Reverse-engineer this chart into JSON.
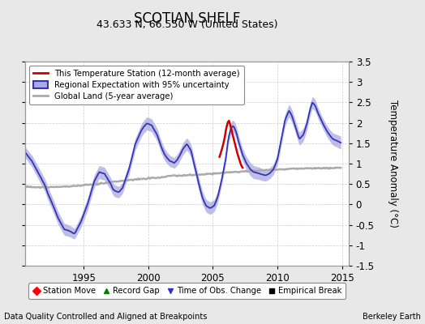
{
  "title": "SCOTIAN SHELF",
  "subtitle": "43.633 N, 66.550 W (United States)",
  "ylabel": "Temperature Anomaly (°C)",
  "footnote_left": "Data Quality Controlled and Aligned at Breakpoints",
  "footnote_right": "Berkeley Earth",
  "xlim": [
    1990.5,
    2015.5
  ],
  "ylim": [
    -1.5,
    3.5
  ],
  "yticks": [
    -1.5,
    -1.0,
    -0.5,
    0.0,
    0.5,
    1.0,
    1.5,
    2.0,
    2.5,
    3.0,
    3.5
  ],
  "ytick_labels": [
    "-1.5",
    "-1",
    "-0.5",
    "0",
    "0.5",
    "1",
    "1.5",
    "2",
    "2.5",
    "3",
    "3.5"
  ],
  "xticks": [
    1995,
    2000,
    2005,
    2010,
    2015
  ],
  "regional_color": "#3333bb",
  "regional_fill_color": "#aaaadd",
  "station_color": "#cc0000",
  "global_color": "#aaaaaa",
  "background_color": "#e8e8e8",
  "plot_bg_color": "#ffffff",
  "title_fontsize": 12,
  "label_fontsize": 8.5,
  "tick_fontsize": 8.5
}
